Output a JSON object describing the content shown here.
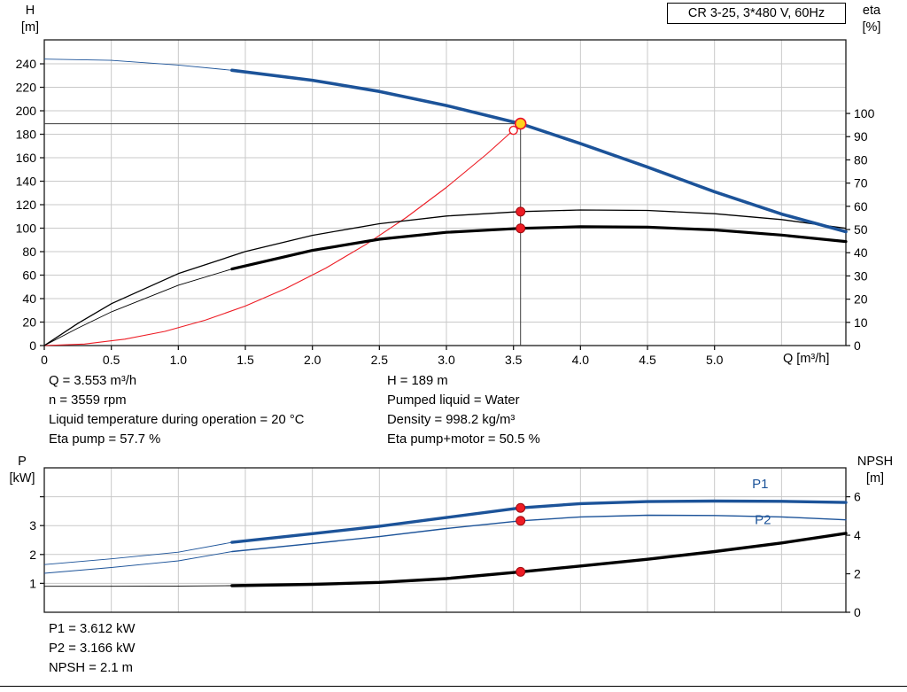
{
  "title_box": "CR 3-25, 3*480 V, 60Hz",
  "colors": {
    "grid": "#c9c9c9",
    "axis": "#1a1a1a",
    "curve_blue": "#1c5399",
    "curve_black": "#000000",
    "curve_red": "#ed1c24",
    "duty_line": "#3d3d3d",
    "dot_fill": "#ee1c25",
    "dot_stroke": "#9e0b0f",
    "duty_fill": "#ffd21e"
  },
  "annotations": {
    "q": "Q = 3.553 m³/h",
    "n": "n = 3559 rpm",
    "liquid_temp": "Liquid temperature during operation = 20 °C",
    "eta_pump": "Eta pump = 57.7 %",
    "h": "H = 189 m",
    "pumped_liquid": "Pumped liquid = Water",
    "density": "Density = 998.2 kg/m³",
    "eta_pump_motor": "Eta pump+motor = 50.5 %",
    "p1": "P1 = 3.612 kW",
    "p2": "P2 = 3.166 kW",
    "npsh": "NPSH = 2.1 m"
  },
  "chart_data": [
    {
      "type": "line",
      "id": "qh-eta-chart",
      "show_x_labels": true,
      "x_axis": {
        "label": "Q [m³/h]",
        "min": 0,
        "max": 5.98,
        "ticks": [
          0,
          0.5,
          1,
          1.5,
          2,
          2.5,
          3,
          3.5,
          4,
          4.5,
          5,
          5.5
        ],
        "tick_labels": [
          "0",
          "0.5",
          "1.0",
          "1.5",
          "2.0",
          "2.5",
          "3.0",
          "3.5",
          "4.0",
          "4.5",
          "5.0",
          ""
        ]
      },
      "left_axis": {
        "label": "H",
        "unit": "[m]",
        "min": 0,
        "max": 260.4,
        "ticks": [
          0,
          20,
          40,
          60,
          80,
          100,
          120,
          140,
          160,
          180,
          200,
          220,
          240
        ],
        "tick_labels": [
          "0",
          "20",
          "40",
          "60",
          "80",
          "100",
          "120",
          "140",
          "160",
          "180",
          "200",
          "220",
          "240"
        ]
      },
      "right_axis": {
        "label": "eta",
        "unit": "[%]",
        "min": 0,
        "max": 131.7,
        "ticks": [
          0,
          10,
          20,
          30,
          40,
          50,
          60,
          70,
          80,
          90,
          100
        ],
        "tick_labels": [
          "0",
          "10",
          "20",
          "30",
          "40",
          "50",
          "60",
          "70",
          "80",
          "90",
          "100"
        ]
      },
      "duty_lines": {
        "q": 3.553,
        "v": 189,
        "color": "#3d3d3d"
      },
      "series": [
        {
          "name": "affinity-parabola",
          "axis": "left",
          "color": "#ed1c24",
          "width": 1.1,
          "points": [
            [
              0,
              0
            ],
            [
              0.3,
              1.3
            ],
            [
              0.6,
              5.4
            ],
            [
              0.9,
              12.1
            ],
            [
              1.2,
              21.6
            ],
            [
              1.5,
              33.7
            ],
            [
              1.8,
              48.5
            ],
            [
              2.1,
              66.0
            ],
            [
              2.4,
              86.2
            ],
            [
              2.7,
              109.1
            ],
            [
              3.0,
              134.7
            ],
            [
              3.3,
              163.0
            ],
            [
              3.553,
              189
            ]
          ]
        },
        {
          "name": "eta-pump",
          "axis": "right",
          "color": "#000000",
          "width": 1.3,
          "points": [
            [
              0,
              0
            ],
            [
              0.25,
              9.5
            ],
            [
              0.5,
              18
            ],
            [
              1,
              31
            ],
            [
              1.5,
              40.5
            ],
            [
              2,
              47.5
            ],
            [
              2.5,
              52.5
            ],
            [
              3,
              55.8
            ],
            [
              3.553,
              57.7
            ],
            [
              4,
              58.4
            ],
            [
              4.5,
              58.2
            ],
            [
              5,
              56.8
            ],
            [
              5.5,
              54.3
            ],
            [
              5.98,
              50.5
            ]
          ]
        },
        {
          "name": "eta-pump-motor",
          "axis": "right",
          "color": "#000000",
          "width": 3.2,
          "thin_width": 0.9,
          "split": 1.4,
          "points": [
            [
              0,
              0
            ],
            [
              0.25,
              7.5
            ],
            [
              0.5,
              14.5
            ],
            [
              1,
              26
            ],
            [
              1.4,
              33
            ],
            [
              2,
              41
            ],
            [
              2.5,
              45.8
            ],
            [
              3,
              48.8
            ],
            [
              3.553,
              50.5
            ],
            [
              4,
              51.2
            ],
            [
              4.5,
              51
            ],
            [
              5,
              49.8
            ],
            [
              5.5,
              47.6
            ],
            [
              5.98,
              44.8
            ]
          ]
        },
        {
          "name": "pump-qh-curve",
          "axis": "left",
          "color": "#1c5399",
          "width": 3.6,
          "thin_width": 0.9,
          "split": 1.4,
          "points": [
            [
              0,
              244
            ],
            [
              0.5,
              243
            ],
            [
              1,
              239
            ],
            [
              1.4,
              234.5
            ],
            [
              2,
              226
            ],
            [
              2.5,
              216.5
            ],
            [
              3,
              204.5
            ],
            [
              3.553,
              189
            ],
            [
              4,
              172
            ],
            [
              4.5,
              152
            ],
            [
              5,
              131
            ],
            [
              5.5,
              112
            ],
            [
              5.98,
              97
            ]
          ]
        }
      ],
      "markers": [
        {
          "name": "requested-duty-point",
          "q": 3.5,
          "v": 183.4,
          "axis": "left",
          "r": 4.5,
          "fill": "#ffffff",
          "stroke": "#ed1c24",
          "sw": 1.4
        },
        {
          "name": "duty-point",
          "q": 3.553,
          "v": 189,
          "axis": "left",
          "r": 6,
          "fill": "#ffd21e",
          "stroke": "#e8112d",
          "sw": 1.6
        },
        {
          "name": "eta-pump-point",
          "q": 3.553,
          "v": 57.7,
          "axis": "right",
          "r": 5,
          "fill": "#ee1c25",
          "stroke": "#9e0b0f",
          "sw": 1
        },
        {
          "name": "eta-pump-motor-point",
          "q": 3.553,
          "v": 50.5,
          "axis": "right",
          "r": 5,
          "fill": "#ee1c25",
          "stroke": "#9e0b0f",
          "sw": 1
        }
      ],
      "labels": []
    },
    {
      "type": "line",
      "id": "power-npsh-chart",
      "show_x_labels": false,
      "x_axis": {
        "label": "",
        "min": 0,
        "max": 5.98,
        "ticks": [
          0,
          0.5,
          1,
          1.5,
          2,
          2.5,
          3,
          3.5,
          4,
          4.5,
          5,
          5.5
        ],
        "tick_labels": [
          "",
          "",
          "",
          "",
          "",
          "",
          "",
          "",
          "",
          "",
          "",
          ""
        ]
      },
      "left_axis": {
        "label": "P",
        "unit": "[kW]",
        "min": 0,
        "max": 5,
        "ticks": [
          1,
          2,
          3,
          4
        ],
        "tick_labels": [
          "1",
          "2",
          "3",
          ""
        ]
      },
      "right_axis": {
        "label": "NPSH",
        "unit": "[m]",
        "min": 0,
        "max": 7.5,
        "ticks": [
          0,
          2,
          4,
          6
        ],
        "tick_labels": [
          "0",
          "2",
          "4",
          "6"
        ]
      },
      "duty_lines": null,
      "series": [
        {
          "name": "p2-curve",
          "axis": "left",
          "color": "#1c5399",
          "width": 1.4,
          "thin_width": 0.9,
          "split": 1.4,
          "points": [
            [
              0,
              1.35
            ],
            [
              0.5,
              1.55
            ],
            [
              1,
              1.78
            ],
            [
              1.4,
              2.1
            ],
            [
              2,
              2.38
            ],
            [
              2.5,
              2.62
            ],
            [
              3,
              2.9
            ],
            [
              3.553,
              3.166
            ],
            [
              4,
              3.3
            ],
            [
              4.5,
              3.36
            ],
            [
              5,
              3.35
            ],
            [
              5.5,
              3.3
            ],
            [
              5.98,
              3.2
            ]
          ]
        },
        {
          "name": "p1-curve",
          "axis": "left",
          "color": "#1c5399",
          "width": 3.4,
          "thin_width": 0.9,
          "split": 1.4,
          "points": [
            [
              0,
              1.65
            ],
            [
              0.5,
              1.85
            ],
            [
              1,
              2.08
            ],
            [
              1.4,
              2.42
            ],
            [
              2,
              2.72
            ],
            [
              2.5,
              2.98
            ],
            [
              3,
              3.28
            ],
            [
              3.553,
              3.612
            ],
            [
              4,
              3.76
            ],
            [
              4.5,
              3.83
            ],
            [
              5,
              3.85
            ],
            [
              5.5,
              3.84
            ],
            [
              5.98,
              3.8
            ]
          ]
        },
        {
          "name": "npsh-curve",
          "axis": "right",
          "color": "#000000",
          "width": 3.4,
          "thin_width": 0.9,
          "split": 1.4,
          "points": [
            [
              0,
              1.35
            ],
            [
              0.5,
              1.35
            ],
            [
              1,
              1.36
            ],
            [
              1.4,
              1.38
            ],
            [
              2,
              1.45
            ],
            [
              2.5,
              1.55
            ],
            [
              3,
              1.75
            ],
            [
              3.553,
              2.1
            ],
            [
              4,
              2.4
            ],
            [
              4.5,
              2.75
            ],
            [
              5,
              3.15
            ],
            [
              5.5,
              3.6
            ],
            [
              5.98,
              4.1
            ]
          ]
        }
      ],
      "markers": [
        {
          "name": "p1-point",
          "q": 3.553,
          "v": 3.612,
          "axis": "left",
          "r": 5,
          "fill": "#ee1c25",
          "stroke": "#9e0b0f",
          "sw": 1
        },
        {
          "name": "p2-point",
          "q": 3.553,
          "v": 3.166,
          "axis": "left",
          "r": 5,
          "fill": "#ee1c25",
          "stroke": "#9e0b0f",
          "sw": 1
        },
        {
          "name": "npsh-point",
          "q": 3.553,
          "v": 2.1,
          "axis": "right",
          "r": 5,
          "fill": "#ee1c25",
          "stroke": "#9e0b0f",
          "sw": 1
        }
      ],
      "labels": [
        {
          "text": "P1",
          "q": 5.28,
          "v": 4.3,
          "axis": "left",
          "color": "#1c5399"
        },
        {
          "text": "P2",
          "q": 5.3,
          "v": 3.05,
          "axis": "left",
          "color": "#1c5399"
        }
      ]
    }
  ]
}
